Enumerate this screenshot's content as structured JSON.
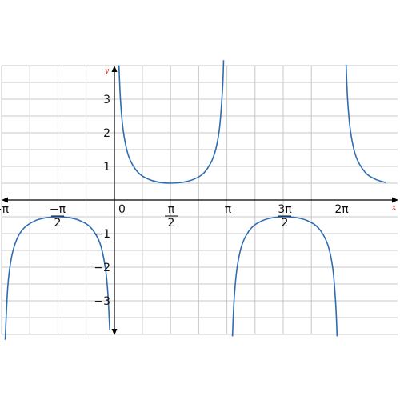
{
  "chart_data": {
    "type": "line",
    "title": "",
    "xlabel": "x",
    "ylabel": "y",
    "xlim": [
      -3.1416,
      7.54
    ],
    "ylim": [
      -4,
      4
    ],
    "grid": true,
    "colors": {
      "curve": "#2f6db3",
      "grid": "#c8c8c8",
      "axis": "#000000",
      "axis_label": "#d62020"
    },
    "x_ticks": [
      {
        "value": -3.1416,
        "label": "−π"
      },
      {
        "value": -1.5708,
        "num": "−π",
        "den": "2"
      },
      {
        "value": 0,
        "label": "0"
      },
      {
        "value": 1.5708,
        "num": "π",
        "den": "2"
      },
      {
        "value": 3.1416,
        "label": "π"
      },
      {
        "value": 4.7124,
        "num": "3π",
        "den": "2"
      },
      {
        "value": 6.2832,
        "label": "2π"
      }
    ],
    "y_ticks": [
      {
        "value": 3,
        "label": "3"
      },
      {
        "value": 2,
        "label": "2"
      },
      {
        "value": 1,
        "label": "1"
      },
      {
        "value": -1,
        "label": "−1"
      },
      {
        "value": -2,
        "label": "−2"
      },
      {
        "value": -3,
        "label": "−3"
      }
    ],
    "series": [
      {
        "function": "y = 1/(2·sin x)",
        "branches": [
          {
            "x": [
              -3.02,
              -2.95,
              -2.85,
              -2.7,
              -2.5,
              -2.2,
              -1.9,
              -1.5708,
              -1.25,
              -0.95,
              -0.65,
              -0.4,
              -0.25,
              -0.18,
              -0.13
            ],
            "y": [
              -4.16,
              -2.61,
              -1.73,
              -1.17,
              -0.835,
              -0.62,
              -0.53,
              -0.5,
              -0.526,
              -0.616,
              -0.826,
              -1.284,
              -2.021,
              -2.789,
              -3.856
            ]
          },
          {
            "x": [
              0.125,
              0.17,
              0.25,
              0.4,
              0.65,
              0.95,
              1.25,
              1.5708,
              1.9,
              2.2,
              2.5,
              2.75,
              2.9,
              2.99,
              3.02
            ],
            "y": [
              4.01,
              2.95,
              2.021,
              1.284,
              0.826,
              0.616,
              0.526,
              0.5,
              0.53,
              0.62,
              0.835,
              1.318,
              2.08,
              3.3,
              4.16
            ]
          },
          {
            "x": [
              3.265,
              3.31,
              3.39,
              3.54,
              3.79,
              4.09,
              4.39,
              4.7124,
              5.04,
              5.34,
              5.64,
              5.89,
              6.04,
              6.12,
              6.159
            ],
            "y": [
              -4.06,
              -2.98,
              -2.04,
              -1.297,
              -0.83,
              -0.617,
              -0.527,
              -0.5,
              -0.527,
              -0.617,
              -0.83,
              -1.297,
              -2.04,
              -3.09,
              -4.06
            ]
          },
          {
            "x": [
              6.408,
              6.45,
              6.53,
              6.68,
              6.93,
              7.2,
              7.5
            ],
            "y": [
              4.03,
              2.98,
              2.04,
              1.297,
              0.83,
              0.627,
              0.52
            ]
          }
        ]
      }
    ]
  }
}
